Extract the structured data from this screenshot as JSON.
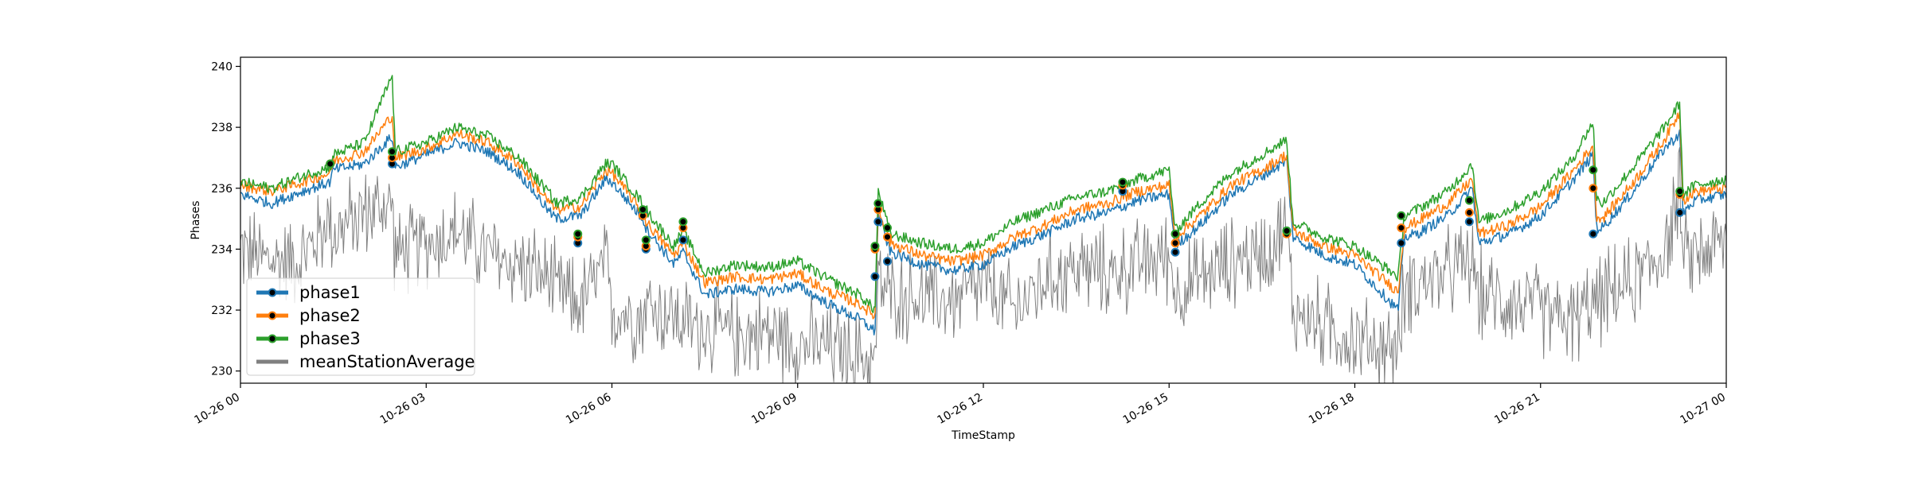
{
  "chart_data": {
    "type": "line",
    "title": "",
    "xlabel": "TimeStamp",
    "ylabel": "Phases",
    "ylim": [
      229.6,
      240.3
    ],
    "y_ticks": [
      230,
      232,
      234,
      236,
      238,
      240
    ],
    "x_range": [
      "2021-10-26 00:00",
      "2021-10-27 00:00"
    ],
    "x_ticks": [
      {
        "label": "10-26 00",
        "hour": 0
      },
      {
        "label": "10-26 03",
        "hour": 3
      },
      {
        "label": "10-26 06",
        "hour": 6
      },
      {
        "label": "10-26 09",
        "hour": 9
      },
      {
        "label": "10-26 12",
        "hour": 12
      },
      {
        "label": "10-26 15",
        "hour": 15
      },
      {
        "label": "10-26 18",
        "hour": 18
      },
      {
        "label": "10-26 21",
        "hour": 21
      },
      {
        "label": "10-27 00",
        "hour": 24
      }
    ],
    "legend_position": "lower-left",
    "x_hours": [
      0,
      0.5,
      1.0,
      1.45,
      1.5,
      2.0,
      2.45,
      2.5,
      3.0,
      3.5,
      4.0,
      4.5,
      5.0,
      5.1,
      5.5,
      5.9,
      6.0,
      6.5,
      6.55,
      7.0,
      7.15,
      7.5,
      8.0,
      8.5,
      9.0,
      9.5,
      10.0,
      10.25,
      10.3,
      10.5,
      11.0,
      11.5,
      12.0,
      12.5,
      13.0,
      13.5,
      14.0,
      14.5,
      15.0,
      15.1,
      15.5,
      16.0,
      16.5,
      16.9,
      17.0,
      17.5,
      18.0,
      18.7,
      18.8,
      19.0,
      19.5,
      19.9,
      20.0,
      20.5,
      21.0,
      21.5,
      21.85,
      21.9,
      22.0,
      22.5,
      23.0,
      23.25,
      23.3,
      23.5,
      24.0
    ],
    "series": [
      {
        "name": "phase1",
        "color": "#1f77b4",
        "values": [
          235.8,
          235.5,
          235.9,
          236.2,
          236.6,
          236.8,
          237.7,
          236.7,
          237.1,
          237.5,
          237.2,
          236.5,
          235.2,
          235.0,
          235.1,
          236.3,
          236.2,
          235.0,
          234.7,
          233.5,
          233.9,
          232.5,
          232.7,
          232.6,
          232.8,
          232.2,
          231.7,
          231.3,
          235.1,
          233.9,
          233.5,
          233.3,
          233.5,
          234.1,
          234.5,
          235.0,
          235.2,
          235.6,
          235.8,
          234.1,
          234.8,
          235.8,
          236.4,
          236.9,
          234.4,
          233.8,
          233.5,
          232.0,
          234.4,
          234.5,
          235.1,
          236.0,
          234.2,
          234.5,
          235.1,
          236.2,
          237.1,
          234.7,
          234.7,
          235.9,
          237.3,
          237.8,
          235.2,
          235.6,
          235.8
        ],
        "markers": [
          [
            1.45,
            236.8
          ],
          [
            2.45,
            236.8
          ],
          [
            5.45,
            234.2
          ],
          [
            6.5,
            235.2
          ],
          [
            6.55,
            234.0
          ],
          [
            7.15,
            234.3
          ],
          [
            10.25,
            233.1
          ],
          [
            10.3,
            234.9
          ],
          [
            10.45,
            233.6
          ],
          [
            14.25,
            235.9
          ],
          [
            15.1,
            233.9
          ],
          [
            16.9,
            234.6
          ],
          [
            18.75,
            234.2
          ],
          [
            19.85,
            234.9
          ],
          [
            21.85,
            234.5
          ],
          [
            23.25,
            235.2
          ]
        ]
      },
      {
        "name": "phase2",
        "color": "#ff7f0e",
        "values": [
          236.1,
          235.9,
          236.2,
          236.5,
          236.9,
          237.2,
          238.4,
          237.0,
          237.3,
          237.8,
          237.5,
          236.8,
          235.5,
          235.3,
          235.4,
          236.6,
          236.5,
          235.2,
          234.9,
          233.8,
          234.2,
          232.9,
          233.1,
          233.0,
          233.2,
          232.6,
          232.2,
          231.8,
          235.4,
          234.2,
          233.8,
          233.6,
          233.8,
          234.4,
          234.8,
          235.3,
          235.5,
          235.9,
          236.1,
          234.4,
          235.1,
          236.1,
          236.6,
          237.1,
          234.6,
          234.1,
          233.8,
          232.6,
          234.7,
          234.9,
          235.5,
          236.3,
          234.5,
          234.8,
          235.4,
          236.5,
          237.4,
          235.1,
          235.0,
          236.2,
          237.6,
          238.5,
          235.6,
          235.9,
          236.0
        ],
        "markers": [
          [
            1.45,
            236.8
          ],
          [
            2.45,
            237.0
          ],
          [
            5.45,
            234.4
          ],
          [
            6.5,
            235.1
          ],
          [
            6.55,
            234.1
          ],
          [
            7.15,
            234.7
          ],
          [
            10.25,
            234.0
          ],
          [
            10.3,
            235.3
          ],
          [
            10.45,
            234.4
          ],
          [
            14.25,
            236.1
          ],
          [
            15.1,
            234.2
          ],
          [
            16.9,
            234.5
          ],
          [
            18.75,
            234.7
          ],
          [
            19.85,
            235.2
          ],
          [
            21.85,
            236.0
          ],
          [
            23.25,
            235.8
          ]
        ]
      },
      {
        "name": "phase3",
        "color": "#2ca02c",
        "values": [
          236.2,
          236.0,
          236.4,
          236.7,
          237.1,
          237.5,
          239.7,
          237.2,
          237.5,
          238.0,
          237.7,
          237.0,
          235.8,
          235.5,
          235.7,
          236.8,
          236.8,
          235.5,
          235.3,
          234.1,
          234.6,
          233.2,
          233.5,
          233.4,
          233.6,
          233.0,
          232.5,
          232.0,
          235.9,
          234.5,
          234.2,
          234.0,
          234.2,
          234.9,
          235.3,
          235.7,
          235.9,
          236.3,
          236.6,
          234.6,
          235.5,
          236.5,
          237.1,
          237.6,
          234.9,
          234.4,
          234.1,
          233.1,
          235.1,
          235.3,
          235.9,
          236.8,
          234.9,
          235.3,
          235.9,
          236.9,
          238.2,
          235.7,
          235.5,
          236.7,
          238.0,
          238.8,
          235.8,
          236.1,
          236.3
        ],
        "markers": [
          [
            1.45,
            236.8
          ],
          [
            2.45,
            237.2
          ],
          [
            5.45,
            234.5
          ],
          [
            6.5,
            235.3
          ],
          [
            6.55,
            234.3
          ],
          [
            7.15,
            234.9
          ],
          [
            10.25,
            234.1
          ],
          [
            10.3,
            235.5
          ],
          [
            10.45,
            234.7
          ],
          [
            14.25,
            236.2
          ],
          [
            15.1,
            234.5
          ],
          [
            16.9,
            234.6
          ],
          [
            18.75,
            235.1
          ],
          [
            19.85,
            235.6
          ],
          [
            21.85,
            236.6
          ],
          [
            23.25,
            235.9
          ]
        ]
      },
      {
        "name": "meanStationAverage",
        "color": "#808080",
        "values": [
          234.0,
          233.6,
          233.7,
          235.0,
          234.5,
          235.2,
          235.5,
          233.8,
          234.2,
          234.6,
          233.8,
          233.5,
          233.0,
          232.6,
          232.2,
          233.5,
          232.0,
          231.8,
          232.2,
          231.8,
          231.6,
          231.4,
          231.2,
          231.3,
          230.9,
          230.8,
          230.5,
          230.3,
          232.9,
          232.5,
          232.4,
          232.3,
          232.8,
          232.0,
          233.0,
          233.4,
          233.2,
          233.5,
          233.8,
          232.6,
          233.0,
          233.6,
          233.9,
          234.7,
          232.0,
          231.5,
          231.0,
          230.7,
          232.6,
          232.9,
          233.2,
          233.6,
          232.5,
          232.3,
          232.0,
          231.6,
          232.2,
          232.2,
          232.4,
          232.9,
          234.0,
          235.9,
          233.6,
          233.9,
          234.2
        ],
        "noise": 1.3
      }
    ]
  }
}
